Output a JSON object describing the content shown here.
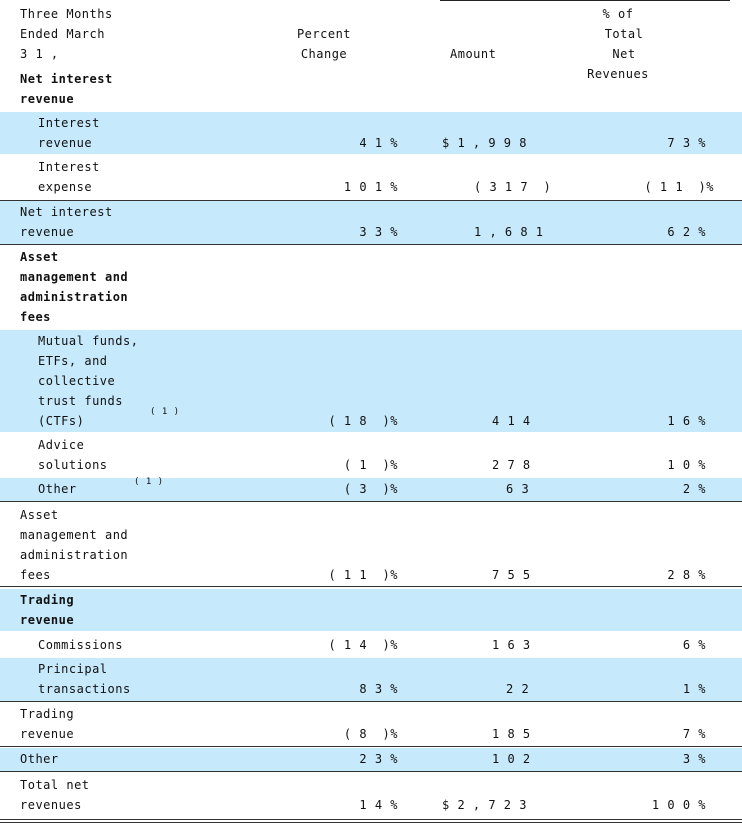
{
  "header": {
    "period_line1": "Three  Months",
    "period_line2": "Ended  March",
    "period_line3": "3 1 ,",
    "percent_line1": "Percent",
    "percent_line2": "Change",
    "amount": "Amount",
    "share_line1": "%  of",
    "share_line2": "Total  Net",
    "share_line3": "Revenues"
  },
  "sections": {
    "nir_title_1": "Net  interest",
    "nir_title_2": "revenue",
    "interest_revenue_1": "Interest",
    "interest_revenue_2": "revenue",
    "interest_revenue_pct": "4 1 %",
    "interest_revenue_amt": "$ 1 , 9 9 8",
    "interest_revenue_share": "7 3 %",
    "interest_expense_1": "Interest",
    "interest_expense_2": "expense",
    "interest_expense_pct": "1 0 1 %",
    "interest_expense_amt": "( 3 1 7  )",
    "interest_expense_share": "( 1 1  )%",
    "nir_total_1": "Net  interest",
    "nir_total_2": "revenue",
    "nir_total_pct": "3 3 %",
    "nir_total_amt": "1 , 6 8 1",
    "nir_total_share": "6 2 %",
    "ama_title_1": "Asset",
    "ama_title_2": "management  and",
    "ama_title_3": "administration",
    "ama_title_4": "fees",
    "mutual_1": "Mutual  funds,",
    "mutual_2": "ETFs,  and",
    "mutual_3": "collective",
    "mutual_4": "trust  funds",
    "mutual_5": "(CTFs)",
    "mutual_note": "( 1 )",
    "mutual_pct": "( 1 8  )%",
    "mutual_amt": "4 1 4",
    "mutual_share": "1 6 %",
    "advice_1": "Advice",
    "advice_2": "solutions",
    "advice_pct": "( 1  )%",
    "advice_amt": "2 7 8",
    "advice_share": "1 0 %",
    "other_ama": "Other",
    "other_ama_note": "( 1 )",
    "other_ama_pct": "( 3  )%",
    "other_ama_amt": "6 3",
    "other_ama_share": "2 %",
    "ama_total_1": "Asset",
    "ama_total_2": "management  and",
    "ama_total_3": "administration",
    "ama_total_4": "fees",
    "ama_total_pct": "( 1 1  )%",
    "ama_total_amt": "7 5 5",
    "ama_total_share": "2 8 %",
    "trading_title_1": "Trading",
    "trading_title_2": "revenue",
    "commissions": "Commissions",
    "commissions_pct": "( 1 4  )%",
    "commissions_amt": "1 6 3",
    "commissions_share": "6 %",
    "principal_1": "Principal",
    "principal_2": "transactions",
    "principal_pct": "8 3 %",
    "principal_amt": "2 2",
    "principal_share": "1 %",
    "trading_total_1": "Trading",
    "trading_total_2": "revenue",
    "trading_total_pct": "( 8  )%",
    "trading_total_amt": "1 8 5",
    "trading_total_share": "7 %",
    "other": "Other",
    "other_pct": "2 3 %",
    "other_amt": "1 0 2",
    "other_share": "3 %",
    "total_1": "Total  net",
    "total_2": "revenues",
    "total_pct": "1 4 %",
    "total_amt": "$ 2 , 7 2 3",
    "total_share": "1 0 0 %"
  }
}
